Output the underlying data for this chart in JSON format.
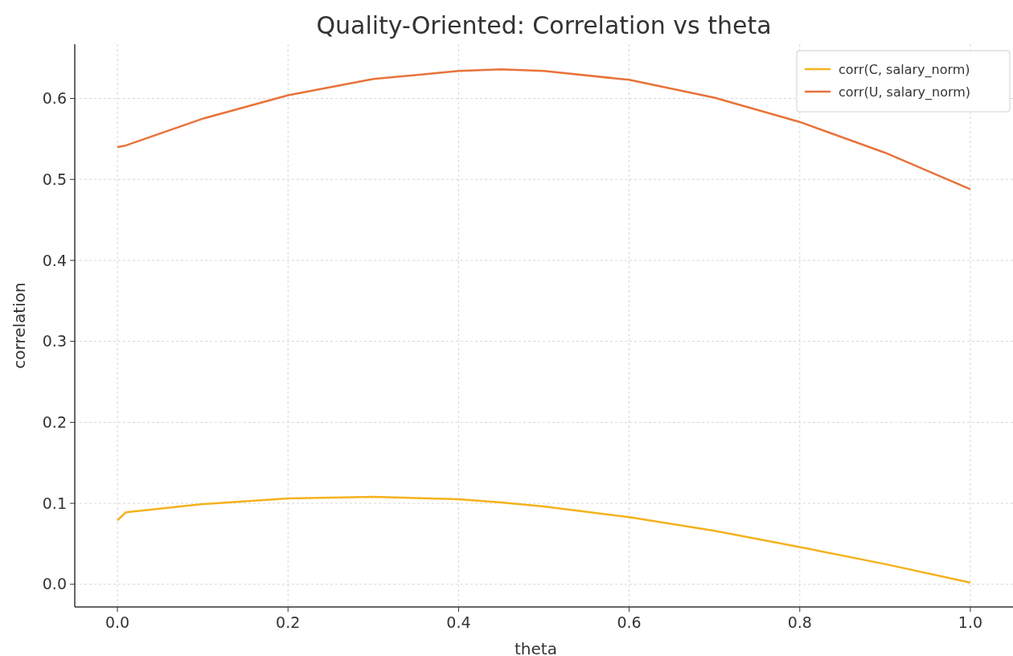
{
  "chart_data": {
    "type": "line",
    "title": "Quality-Oriented: Correlation vs theta",
    "xlabel": "theta",
    "ylabel": "correlation",
    "xlim": [
      -0.05,
      1.05
    ],
    "ylim": [
      -0.028,
      0.667
    ],
    "xticks": [
      {
        "value": 0,
        "label": "0.0"
      },
      {
        "value": 0.2,
        "label": "0.2"
      },
      {
        "value": 0.4,
        "label": "0.4"
      },
      {
        "value": 0.6,
        "label": "0.6"
      },
      {
        "value": 0.8,
        "label": "0.8"
      },
      {
        "value": 1,
        "label": "1.0"
      }
    ],
    "yticks": [
      {
        "value": 0,
        "label": "0.0"
      },
      {
        "value": 0.1,
        "label": "0.1"
      },
      {
        "value": 0.2,
        "label": "0.2"
      },
      {
        "value": 0.3,
        "label": "0.3"
      },
      {
        "value": 0.4,
        "label": "0.4"
      },
      {
        "value": 0.5,
        "label": "0.5"
      },
      {
        "value": 0.6,
        "label": "0.6"
      }
    ],
    "grid": true,
    "legend": "top right",
    "line_style": "solid",
    "marker": "none",
    "x": [
      0,
      0.01,
      0.1,
      0.2,
      0.3,
      0.4,
      0.45,
      0.5,
      0.6,
      0.7,
      0.8,
      0.9,
      1.0
    ],
    "series": [
      {
        "name": "corr(C, salary_norm)",
        "color": "#f5b21c",
        "values": [
          0.079,
          0.089,
          0.099,
          0.106,
          0.108,
          0.105,
          0.101,
          0.096,
          0.083,
          0.066,
          0.046,
          0.025,
          0.002
        ]
      },
      {
        "name": "corr(U, salary_norm)",
        "color": "#e8733a",
        "values": [
          0.54,
          0.542,
          0.575,
          0.604,
          0.624,
          0.634,
          0.636,
          0.634,
          0.623,
          0.601,
          0.571,
          0.533,
          0.488
        ]
      }
    ]
  }
}
